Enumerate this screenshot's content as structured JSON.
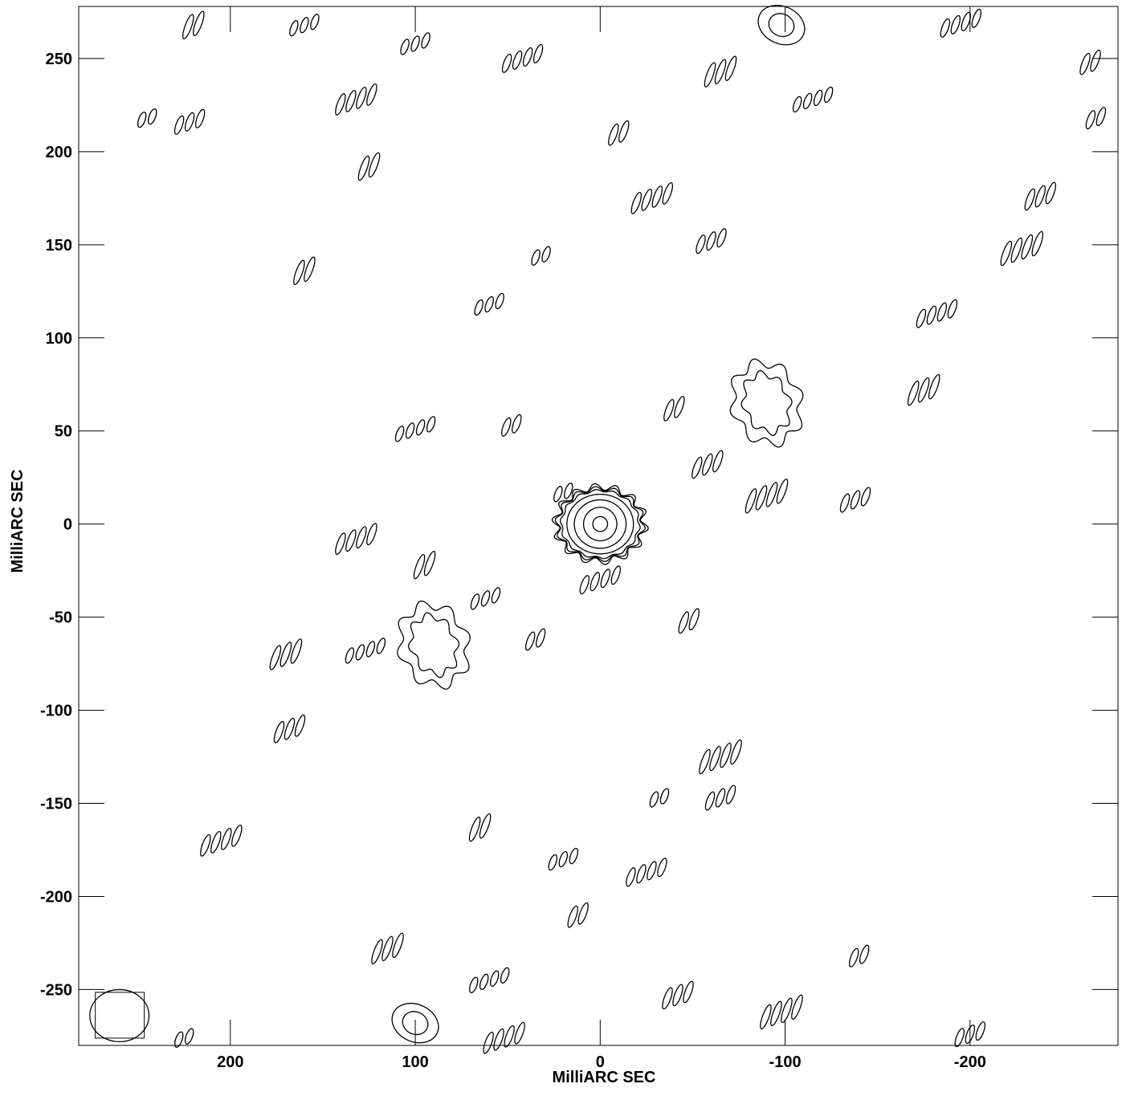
{
  "chart_data": {
    "type": "contour",
    "xlabel": "MilliARC SEC",
    "ylabel": "MilliARC SEC",
    "xlim": [
      282,
      -280
    ],
    "ylim": [
      -280,
      278
    ],
    "x_ticks": [
      200,
      100,
      0,
      -100,
      -200
    ],
    "x_tick_labels": [
      "200",
      "100",
      "0",
      "-100",
      "-200"
    ],
    "y_ticks": [
      250,
      200,
      150,
      100,
      50,
      0,
      -50,
      -100,
      -150,
      -200,
      -250
    ],
    "y_tick_labels": [
      "250",
      "200",
      "150",
      "100",
      "50",
      "0",
      "-50",
      "-100",
      "-150",
      "-200",
      "-250"
    ],
    "grid": false,
    "line_color": "#000000",
    "background": "#ffffff",
    "central_source": {
      "x": 0,
      "y": 0,
      "contour_levels": 7,
      "radii_x": [
        4,
        9,
        14,
        18,
        21,
        23,
        24
      ],
      "radii_y": [
        4,
        9,
        13,
        16,
        18,
        19,
        20
      ]
    },
    "beam": {
      "x": 260,
      "y": -264,
      "major": 16,
      "minor": 14
    },
    "secondary_features": [
      {
        "x": -90,
        "y": 65,
        "type": "ring"
      },
      {
        "x": 90,
        "y": -65,
        "type": "ring"
      },
      {
        "x": -98,
        "y": 268,
        "type": "blob"
      },
      {
        "x": 100,
        "y": -268,
        "type": "blob"
      }
    ],
    "sidelobe_groups": [
      {
        "x": 245,
        "y": 218
      },
      {
        "x": 222,
        "y": 216
      },
      {
        "x": 132,
        "y": 228
      },
      {
        "x": 125,
        "y": 192
      },
      {
        "x": 100,
        "y": 258
      },
      {
        "x": 42,
        "y": 250
      },
      {
        "x": -10,
        "y": 210
      },
      {
        "x": -65,
        "y": 243
      },
      {
        "x": -115,
        "y": 228
      },
      {
        "x": -268,
        "y": 218
      },
      {
        "x": -238,
        "y": 176
      },
      {
        "x": -228,
        "y": 148
      },
      {
        "x": 32,
        "y": 144
      },
      {
        "x": -60,
        "y": 152
      },
      {
        "x": -28,
        "y": 175
      },
      {
        "x": 160,
        "y": 136
      },
      {
        "x": 60,
        "y": 118
      },
      {
        "x": -182,
        "y": 113
      },
      {
        "x": -40,
        "y": 62
      },
      {
        "x": -175,
        "y": 72
      },
      {
        "x": 100,
        "y": 51
      },
      {
        "x": 48,
        "y": 53
      },
      {
        "x": -58,
        "y": 32
      },
      {
        "x": -90,
        "y": 15
      },
      {
        "x": 20,
        "y": 17
      },
      {
        "x": -138,
        "y": 13
      },
      {
        "x": 132,
        "y": -8
      },
      {
        "x": 95,
        "y": -22
      },
      {
        "x": 62,
        "y": -40
      },
      {
        "x": 0,
        "y": -30
      },
      {
        "x": -48,
        "y": -52
      },
      {
        "x": 170,
        "y": -70
      },
      {
        "x": 127,
        "y": -68
      },
      {
        "x": 35,
        "y": -62
      },
      {
        "x": 168,
        "y": -110
      },
      {
        "x": -65,
        "y": -125
      },
      {
        "x": -32,
        "y": -147
      },
      {
        "x": -65,
        "y": -147
      },
      {
        "x": 205,
        "y": -170
      },
      {
        "x": 65,
        "y": -163
      },
      {
        "x": 20,
        "y": -180
      },
      {
        "x": -25,
        "y": -187
      },
      {
        "x": 12,
        "y": -210
      },
      {
        "x": 115,
        "y": -228
      },
      {
        "x": 60,
        "y": -245
      },
      {
        "x": -140,
        "y": -232
      },
      {
        "x": -42,
        "y": -253
      },
      {
        "x": -98,
        "y": -262
      },
      {
        "x": 225,
        "y": -276
      },
      {
        "x": -200,
        "y": -274
      },
      {
        "x": 52,
        "y": -276
      },
      {
        "x": 220,
        "y": 268
      },
      {
        "x": 160,
        "y": 268
      },
      {
        "x": -195,
        "y": 269
      },
      {
        "x": -265,
        "y": 248
      }
    ]
  }
}
